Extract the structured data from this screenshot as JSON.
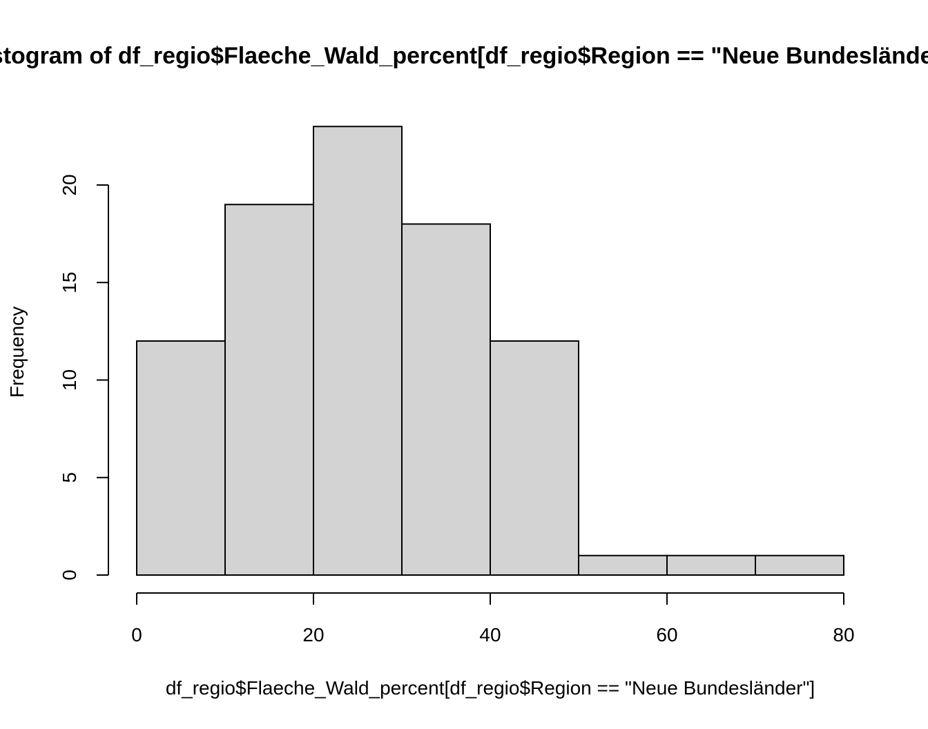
{
  "chart_data": {
    "type": "bar",
    "title": "Histogram of df_regio$Flaeche_Wald_percent[df_regio$Region == \"Neue Bundesländer\"]",
    "xlabel": "df_regio$Flaeche_Wald_percent[df_regio$Region == \"Neue Bundesländer\"]",
    "ylabel": "Frequency",
    "bins": [
      {
        "start": 0,
        "end": 10,
        "count": 12
      },
      {
        "start": 10,
        "end": 20,
        "count": 19
      },
      {
        "start": 20,
        "end": 30,
        "count": 23
      },
      {
        "start": 30,
        "end": 40,
        "count": 18
      },
      {
        "start": 40,
        "end": 50,
        "count": 12
      },
      {
        "start": 50,
        "end": 60,
        "count": 1
      },
      {
        "start": 60,
        "end": 70,
        "count": 1
      },
      {
        "start": 70,
        "end": 80,
        "count": 1
      }
    ],
    "xticks": [
      0,
      20,
      40,
      60,
      80
    ],
    "yticks": [
      0,
      5,
      10,
      15,
      20
    ],
    "xlim": [
      0,
      80
    ],
    "ylim": [
      0,
      23
    ],
    "grid": false,
    "colors": {
      "bar_fill": "#d3d3d3",
      "bar_stroke": "#000000"
    }
  }
}
